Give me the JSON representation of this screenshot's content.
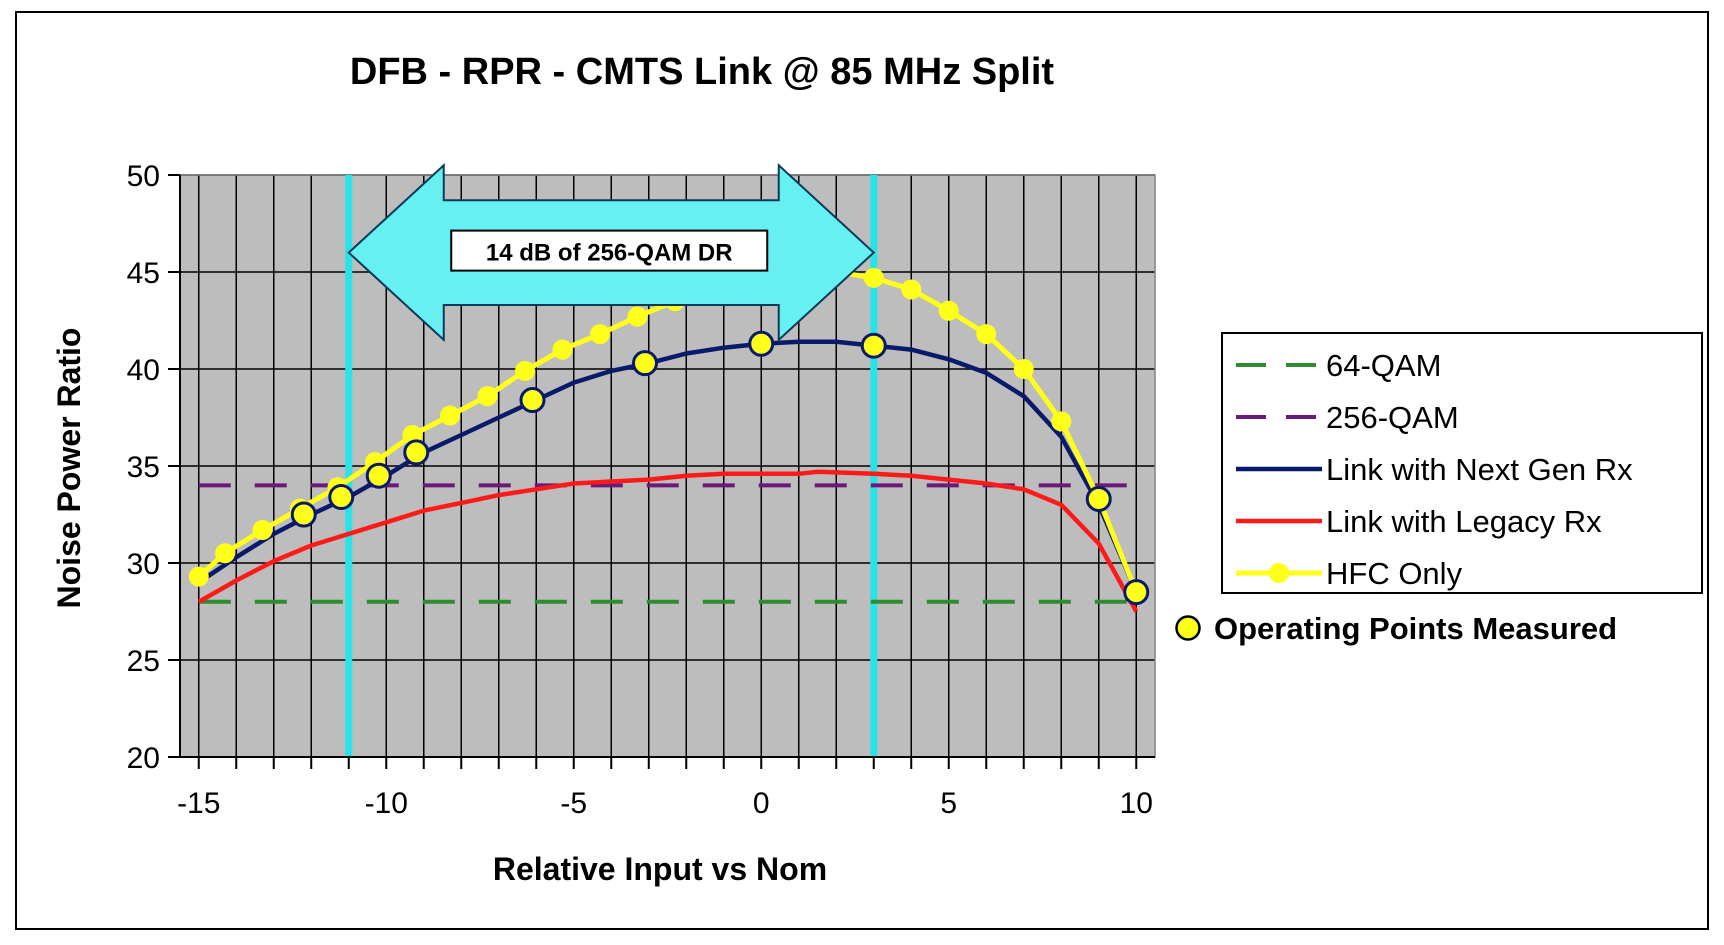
{
  "chart_data": {
    "type": "line",
    "title": "DFB - RPR - CMTS Link @ 85 MHz Split",
    "xlabel": "Relative Input vs Nom",
    "ylabel": "Noise Power Ratio",
    "xlim": [
      -15.5,
      10.5
    ],
    "ylim": [
      20,
      50
    ],
    "xticks": [
      -15,
      -10,
      -5,
      0,
      5,
      10
    ],
    "yticks": [
      20,
      25,
      30,
      35,
      40,
      45,
      50
    ],
    "grid": true,
    "legend_position": "right",
    "series": [
      {
        "name": "64-QAM",
        "style": "dashed",
        "color": "#2E8B2E",
        "points": [
          [
            -15,
            28
          ],
          [
            10,
            28
          ]
        ]
      },
      {
        "name": "256-QAM",
        "style": "dashed",
        "color": "#6A1B7A",
        "points": [
          [
            -15,
            34
          ],
          [
            10,
            34
          ]
        ]
      },
      {
        "name": "Link with Next Gen Rx",
        "style": "solid",
        "color": "#0A1A6B",
        "points": [
          [
            -15,
            29
          ],
          [
            -14,
            30.3
          ],
          [
            -13,
            31.5
          ],
          [
            -12,
            32.5
          ],
          [
            -11,
            33.4
          ],
          [
            -10,
            34.5
          ],
          [
            -9,
            35.7
          ],
          [
            -8,
            36.6
          ],
          [
            -7,
            37.5
          ],
          [
            -6,
            38.4
          ],
          [
            -5,
            39.3
          ],
          [
            -4,
            39.9
          ],
          [
            -3,
            40.3
          ],
          [
            -2,
            40.8
          ],
          [
            -1,
            41.1
          ],
          [
            0,
            41.3
          ],
          [
            1,
            41.4
          ],
          [
            2,
            41.4
          ],
          [
            3,
            41.2
          ],
          [
            4,
            41.0
          ],
          [
            5,
            40.5
          ],
          [
            6,
            39.8
          ],
          [
            7,
            38.6
          ],
          [
            8,
            36.5
          ],
          [
            9,
            33.0
          ],
          [
            10,
            28.5
          ]
        ]
      },
      {
        "name": "Link with Legacy Rx",
        "style": "solid",
        "color": "#FF1A1A",
        "points": [
          [
            -15,
            28
          ],
          [
            -14,
            29.1
          ],
          [
            -13,
            30.1
          ],
          [
            -12,
            30.9
          ],
          [
            -11,
            31.5
          ],
          [
            -10,
            32.1
          ],
          [
            -9,
            32.7
          ],
          [
            -8,
            33.1
          ],
          [
            -7,
            33.5
          ],
          [
            -6,
            33.8
          ],
          [
            -5,
            34.1
          ],
          [
            -4,
            34.2
          ],
          [
            -3,
            34.3
          ],
          [
            -2,
            34.5
          ],
          [
            -1,
            34.6
          ],
          [
            0,
            34.6
          ],
          [
            1,
            34.6
          ],
          [
            1.5,
            34.7
          ],
          [
            3,
            34.6
          ],
          [
            4,
            34.5
          ],
          [
            5,
            34.3
          ],
          [
            6,
            34.1
          ],
          [
            7,
            33.8
          ],
          [
            8,
            33.0
          ],
          [
            9,
            31.0
          ],
          [
            10,
            27.5
          ]
        ]
      },
      {
        "name": "HFC Only",
        "style": "solid-markers",
        "color": "#FFFF1A",
        "points": [
          [
            -15,
            29.3
          ],
          [
            -14.3,
            30.5
          ],
          [
            -13.3,
            31.7
          ],
          [
            -12.3,
            32.8
          ],
          [
            -11.3,
            33.9
          ],
          [
            -10.3,
            35.2
          ],
          [
            -9.3,
            36.6
          ],
          [
            -8.3,
            37.6
          ],
          [
            -7.3,
            38.6
          ],
          [
            -6.3,
            39.9
          ],
          [
            -5.3,
            41.0
          ],
          [
            -4.3,
            41.8
          ],
          [
            -3.3,
            42.7
          ],
          [
            -2.3,
            43.5
          ],
          [
            -1.3,
            44.1
          ],
          [
            -0.3,
            44.6
          ],
          [
            0.7,
            45.0
          ],
          [
            2,
            45.0
          ],
          [
            3,
            44.7
          ],
          [
            4,
            44.1
          ],
          [
            5,
            43.0
          ],
          [
            6,
            41.8
          ],
          [
            7,
            40.0
          ],
          [
            8,
            37.3
          ],
          [
            9,
            33.3
          ],
          [
            10,
            28.5
          ]
        ]
      }
    ],
    "operating_points_measured": {
      "label": "Operating Points Measured",
      "color": "#FFFF1A",
      "points": [
        [
          -12.2,
          32.5
        ],
        [
          -11.2,
          33.4
        ],
        [
          -10.2,
          34.5
        ],
        [
          -9.2,
          35.7
        ],
        [
          -6.1,
          38.4
        ],
        [
          -3.1,
          40.3
        ],
        [
          0,
          41.3
        ],
        [
          3,
          41.2
        ],
        [
          9,
          33.3
        ],
        [
          10,
          28.5
        ]
      ]
    },
    "vertical_markers": {
      "color": "#29E3E8",
      "x": [
        -11,
        3
      ]
    },
    "annotation": {
      "text": "14 dB of 256-QAM DR",
      "color": "#66F0F2",
      "x_range": [
        -11,
        3
      ],
      "y_center": 46,
      "y_range": [
        41.5,
        50.5
      ]
    },
    "plot_background": "#BDBDBD"
  }
}
